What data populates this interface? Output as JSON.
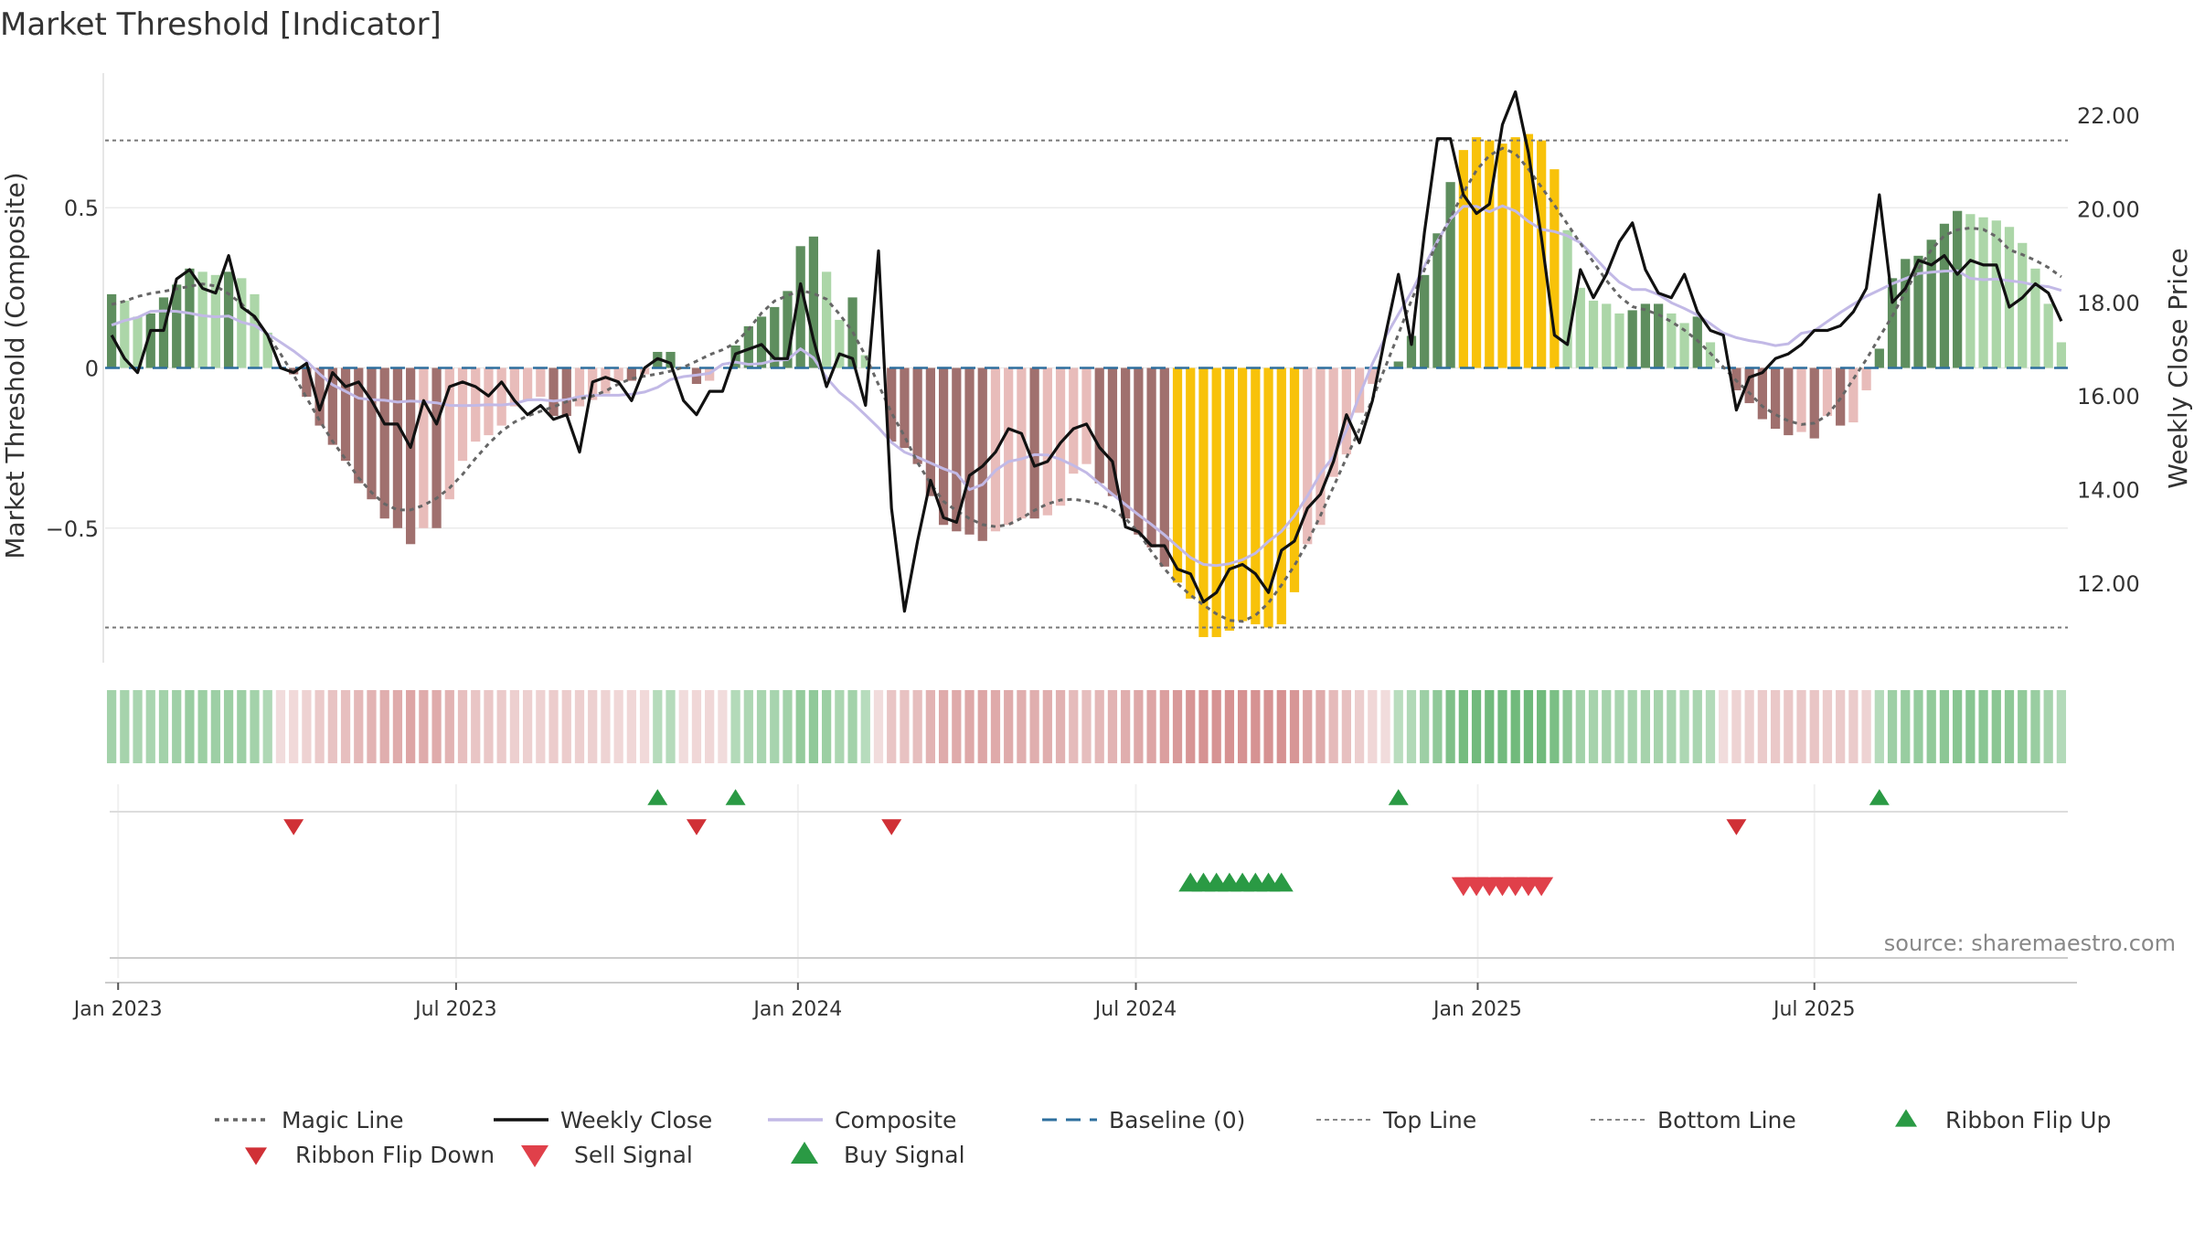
{
  "chart_data": {
    "type": "bar",
    "title": "Market Threshold [Indicator]",
    "ylabel": "Market Threshold (Composite)",
    "y2label": "Weekly Close Price",
    "ylim": [
      -0.92,
      0.92
    ],
    "y2lim": [
      10.3,
      22.9
    ],
    "yticks": [
      {
        "v": 0.5,
        "label": "0.5"
      },
      {
        "v": 0,
        "label": "0"
      },
      {
        "v": -0.5,
        "label": "−0.5"
      }
    ],
    "y2ticks": [
      {
        "v": 22,
        "label": "22.00"
      },
      {
        "v": 20,
        "label": "20.00"
      },
      {
        "v": 18,
        "label": "18.00"
      },
      {
        "v": 16,
        "label": "16.00"
      },
      {
        "v": 14,
        "label": "14.00"
      },
      {
        "v": 12,
        "label": "12.00"
      }
    ],
    "xticks": [
      {
        "week": 0.5,
        "label": "Jan 2023"
      },
      {
        "week": 26.5,
        "label": "Jul 2023"
      },
      {
        "week": 52.8,
        "label": "Jan 2024"
      },
      {
        "week": 78.8,
        "label": "Jul 2024"
      },
      {
        "week": 105.1,
        "label": "Jan 2025"
      },
      {
        "week": 131,
        "label": "Jul 2025"
      }
    ],
    "top_line": 0.71,
    "bottom_line": -0.81,
    "grid": true,
    "legend_position": "bottom",
    "source": "source: sharemaestro.com",
    "bars": [
      0.23,
      0.21,
      0.16,
      0.17,
      0.22,
      0.26,
      0.31,
      0.3,
      0.29,
      0.3,
      0.28,
      0.23,
      0.11,
      0,
      -0.02,
      -0.09,
      -0.18,
      -0.24,
      -0.29,
      -0.36,
      -0.41,
      -0.47,
      -0.5,
      -0.55,
      -0.5,
      -0.5,
      -0.41,
      -0.29,
      -0.23,
      -0.21,
      -0.18,
      -0.12,
      -0.1,
      -0.09,
      -0.15,
      -0.15,
      -0.12,
      -0.1,
      -0.08,
      -0.04,
      -0.04,
      -0.02,
      0.05,
      0.05,
      0,
      -0.05,
      -0.04,
      0,
      0.07,
      0.13,
      0.16,
      0.19,
      0.24,
      0.38,
      0.41,
      0.3,
      0.15,
      0.22,
      0.04,
      0,
      -0.23,
      -0.25,
      -0.3,
      -0.4,
      -0.49,
      -0.51,
      -0.52,
      -0.54,
      -0.51,
      -0.49,
      -0.47,
      -0.47,
      -0.46,
      -0.43,
      -0.33,
      -0.3,
      -0.36,
      -0.4,
      -0.47,
      -0.52,
      -0.56,
      -0.62,
      -0.67,
      -0.72,
      -0.84,
      -0.84,
      -0.82,
      -0.79,
      -0.8,
      -0.81,
      -0.8,
      -0.7,
      -0.55,
      -0.49,
      -0.34,
      -0.27,
      -0.14,
      -0.05,
      0,
      0.02,
      0.1,
      0.29,
      0.42,
      0.58,
      0.68,
      0.72,
      0.71,
      0.7,
      0.72,
      0.73,
      0.71,
      0.62,
      0.43,
      0.25,
      0.21,
      0.2,
      0.17,
      0.18,
      0.2,
      0.2,
      0.17,
      0.14,
      0.16,
      0.08,
      0,
      -0.07,
      -0.11,
      -0.16,
      -0.19,
      -0.21,
      -0.2,
      -0.22,
      -0.15,
      -0.18,
      -0.17,
      -0.07,
      0.06,
      0.28,
      0.34,
      0.35,
      0.4,
      0.45,
      0.49,
      0.48,
      0.47,
      0.46,
      0.44,
      0.39,
      0.31,
      0.2,
      0.08
    ],
    "weekly_close": [
      17.3,
      16.8,
      16.5,
      17.4,
      17.4,
      18.5,
      18.7,
      18.3,
      18.2,
      19.0,
      17.9,
      17.7,
      17.3,
      16.6,
      16.5,
      16.7,
      15.7,
      16.5,
      16.2,
      16.3,
      15.9,
      15.4,
      15.4,
      14.9,
      15.9,
      15.4,
      16.2,
      16.3,
      16.2,
      16.0,
      16.3,
      15.9,
      15.6,
      15.8,
      15.5,
      15.6,
      14.8,
      16.3,
      16.4,
      16.3,
      15.9,
      16.6,
      16.8,
      16.7,
      15.9,
      15.6,
      16.1,
      16.1,
      16.9,
      17.0,
      17.1,
      16.8,
      16.8,
      18.4,
      17.2,
      16.2,
      16.9,
      16.8,
      15.8,
      19.1,
      13.6,
      11.4,
      12.9,
      14.2,
      13.4,
      13.3,
      14.3,
      14.5,
      14.8,
      15.3,
      15.2,
      14.5,
      14.6,
      15.0,
      15.3,
      15.4,
      14.9,
      14.6,
      13.2,
      13.1,
      12.8,
      12.8,
      12.3,
      12.2,
      11.6,
      11.8,
      12.3,
      12.4,
      12.2,
      11.8,
      12.7,
      12.9,
      13.6,
      13.9,
      14.6,
      15.6,
      15.0,
      15.9,
      17.3,
      18.6,
      17.1,
      19.5,
      21.5,
      21.5,
      20.3,
      19.9,
      20.1,
      21.8,
      22.5,
      21.2,
      19.4,
      17.3,
      17.1,
      18.7,
      18.1,
      18.6,
      19.3,
      19.7,
      18.7,
      18.2,
      18.1,
      18.6,
      17.8,
      17.4,
      17.3,
      15.7,
      16.4,
      16.5,
      16.8,
      16.9,
      17.1,
      17.4,
      17.4,
      17.5,
      17.8,
      18.3,
      20.3,
      18.0,
      18.3,
      18.9,
      18.8,
      19.0,
      18.6,
      18.9,
      18.8,
      18.8,
      17.9,
      18.1,
      18.4,
      18.2,
      17.6
    ]
  },
  "legend": [
    {
      "label": "Magic Line",
      "symbol": "dotted",
      "color": "#666666"
    },
    {
      "label": "Weekly Close",
      "symbol": "solid",
      "color": "#111111"
    },
    {
      "label": "Composite",
      "symbol": "solid",
      "color": "#c2b9e6"
    },
    {
      "label": "Baseline (0)",
      "symbol": "dashed",
      "color": "#2e6f9e"
    },
    {
      "label": "Top Line",
      "symbol": "dashed-thin",
      "color": "#888888"
    },
    {
      "label": "Bottom Line",
      "symbol": "dashed-thin",
      "color": "#888888"
    },
    {
      "label": "Ribbon Flip Up",
      "symbol": "triangle-up-small",
      "color": "#2a9a44"
    },
    {
      "label": "Ribbon Flip Down",
      "symbol": "triangle-down-small",
      "color": "#d03036"
    },
    {
      "label": "Sell Signal",
      "symbol": "triangle-down",
      "color": "#e0404a"
    },
    {
      "label": "Buy Signal",
      "symbol": "triangle-up",
      "color": "#2a9a44"
    }
  ],
  "colors": {
    "pos_dark": "#5e8e5e",
    "pos_light": "#acd6a8",
    "neg_dark": "#a0706e",
    "neg_light": "#e8bcba",
    "extreme": "#f8c20a",
    "grid": "#ebebeb"
  }
}
